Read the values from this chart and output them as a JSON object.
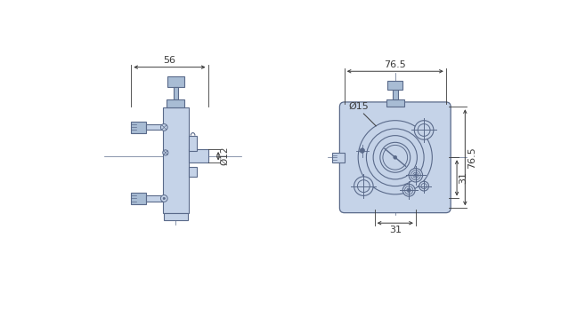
{
  "bg_color": "#ffffff",
  "line_color": "#5a6a8a",
  "fill_color": "#c5d3e8",
  "fill_color_dark": "#a8bcd4",
  "dim_color": "#3a3a3a",
  "fig_width": 6.3,
  "fig_height": 3.48,
  "dim_56": "56",
  "dim_76_5_top": "76.5",
  "dim_76_5_right": "76.5",
  "dim_12": "Ø12",
  "dim_15": "Ø15",
  "dim_31_bottom": "31",
  "dim_31_right": "31"
}
